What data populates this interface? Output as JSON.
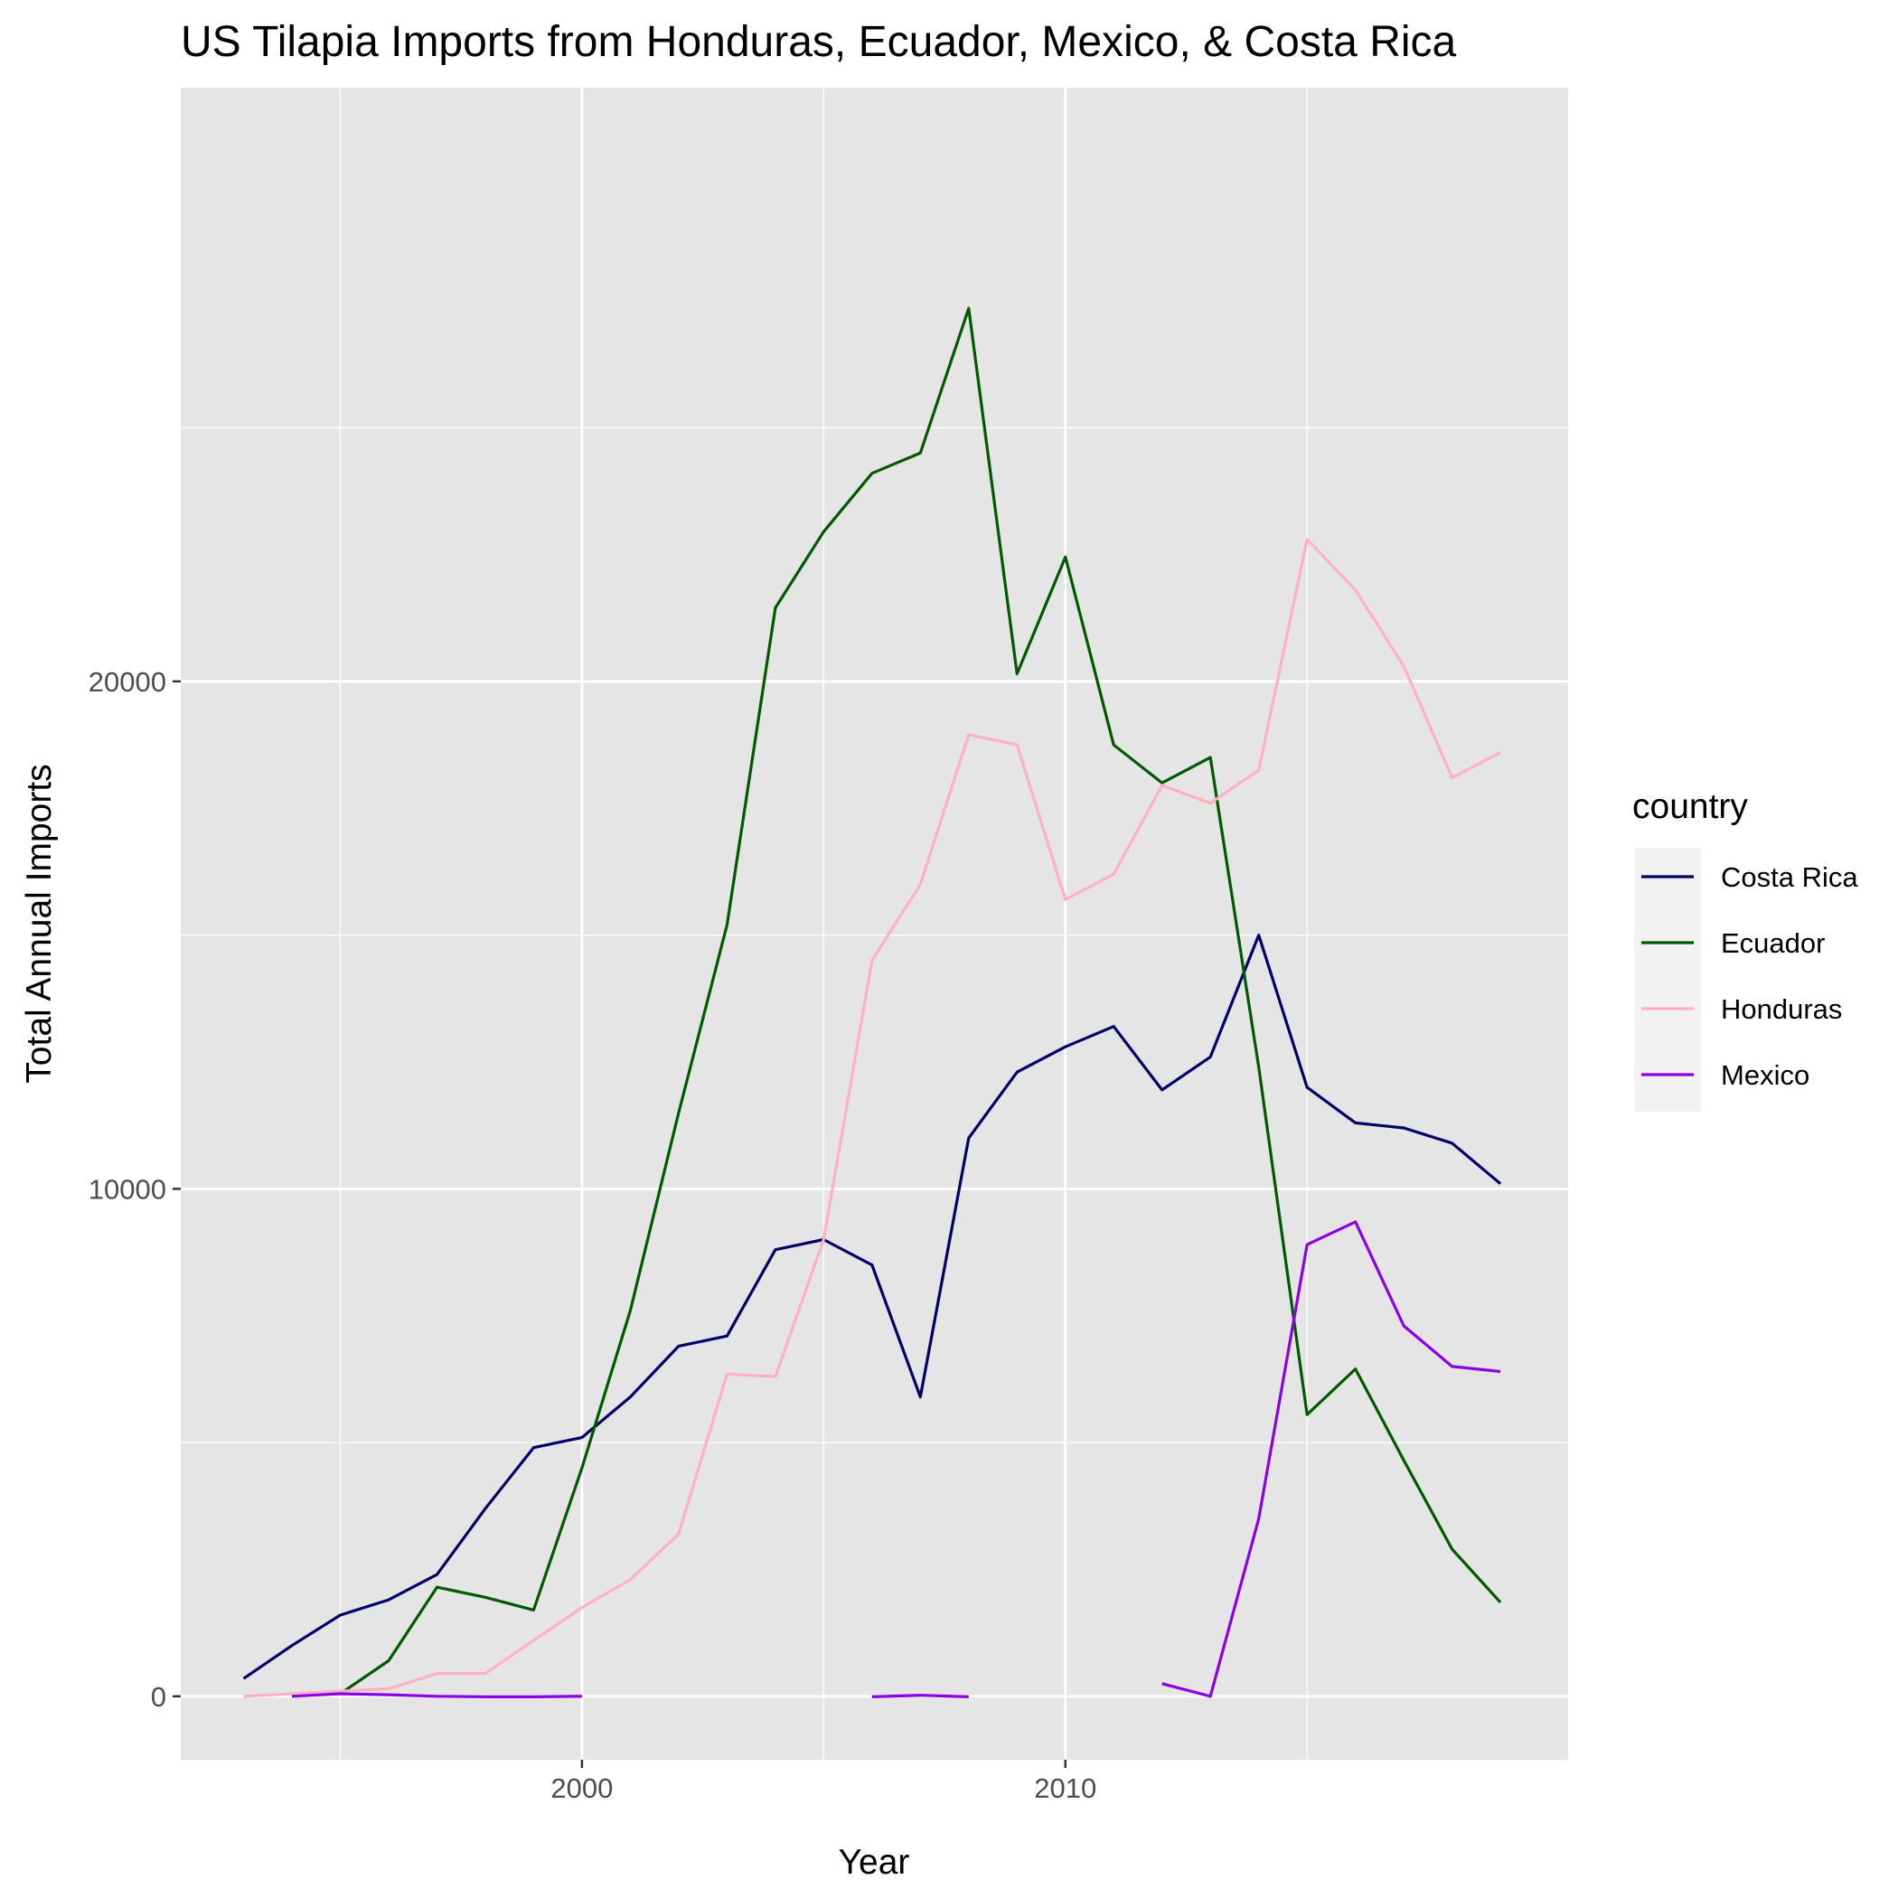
{
  "chart_data": {
    "type": "line",
    "title": "US Tilapia Imports from Honduras, Ecuador, Mexico, & Costa Rica",
    "xlabel": "Year",
    "ylabel": "Total Annual Imports",
    "xlim": [
      1991.7,
      2020.4
    ],
    "ylim": [
      -1250,
      31700
    ],
    "x_ticks": [
      2000,
      2010
    ],
    "y_ticks": [
      0,
      10000,
      20000
    ],
    "x_minor": [
      1995,
      2005,
      2015
    ],
    "y_minor": [
      5000,
      15000,
      25000
    ],
    "grid": true,
    "panel_color": "#e5e5e5",
    "grid_color": "#ffffff",
    "legend": {
      "title": "country",
      "position": "right"
    },
    "series": [
      {
        "name": "Costa Rica",
        "color": "#000066",
        "points": [
          [
            1993,
            350
          ],
          [
            1994,
            1000
          ],
          [
            1995,
            1600
          ],
          [
            1996,
            1900
          ],
          [
            1997,
            2400
          ],
          [
            1998,
            3700
          ],
          [
            1999,
            4900
          ],
          [
            2000,
            5100
          ],
          [
            2001,
            5900
          ],
          [
            2002,
            6900
          ],
          [
            2003,
            7100
          ],
          [
            2004,
            8800
          ],
          [
            2005,
            9000
          ],
          [
            2006,
            8500
          ],
          [
            2007,
            5900
          ],
          [
            2008,
            11000
          ],
          [
            2009,
            12300
          ],
          [
            2010,
            12800
          ],
          [
            2011,
            13200
          ],
          [
            2012,
            11950
          ],
          [
            2013,
            12600
          ],
          [
            2014,
            15000
          ],
          [
            2015,
            12000
          ],
          [
            2016,
            11300
          ],
          [
            2017,
            11200
          ],
          [
            2018,
            10900
          ],
          [
            2019,
            10100
          ]
        ]
      },
      {
        "name": "Ecuador",
        "color": "#005900",
        "points": [
          [
            1995,
            50
          ],
          [
            1996,
            700
          ],
          [
            1997,
            2150
          ],
          [
            1998,
            1950
          ],
          [
            1999,
            1700
          ],
          [
            2000,
            4500
          ],
          [
            2001,
            7600
          ],
          [
            2002,
            11500
          ],
          [
            2003,
            15200
          ],
          [
            2004,
            21450
          ],
          [
            2005,
            22950
          ],
          [
            2006,
            24100
          ],
          [
            2007,
            24500
          ],
          [
            2008,
            27350
          ],
          [
            2009,
            20150
          ],
          [
            2010,
            22450
          ],
          [
            2011,
            18750
          ],
          [
            2012,
            18000
          ],
          [
            2013,
            18500
          ],
          [
            2014,
            12400
          ],
          [
            2015,
            5550
          ],
          [
            2016,
            6450
          ],
          [
            2017,
            4650
          ],
          [
            2018,
            2900
          ],
          [
            2019,
            1850
          ]
        ]
      },
      {
        "name": "Honduras",
        "color": "#ffb0c1",
        "points": [
          [
            1993,
            0
          ],
          [
            1994,
            50
          ],
          [
            1995,
            100
          ],
          [
            1996,
            150
          ],
          [
            1997,
            450
          ],
          [
            1998,
            450
          ],
          [
            1999,
            1100
          ],
          [
            2000,
            1750
          ],
          [
            2001,
            2300
          ],
          [
            2002,
            3200
          ],
          [
            2003,
            6350
          ],
          [
            2004,
            6300
          ],
          [
            2005,
            9000
          ],
          [
            2006,
            14500
          ],
          [
            2007,
            16000
          ],
          [
            2008,
            18950
          ],
          [
            2009,
            18750
          ],
          [
            2010,
            15700
          ],
          [
            2011,
            16200
          ],
          [
            2012,
            17950
          ],
          [
            2013,
            17600
          ],
          [
            2014,
            18250
          ],
          [
            2015,
            22800
          ],
          [
            2016,
            21800
          ],
          [
            2017,
            20300
          ],
          [
            2018,
            18100
          ],
          [
            2019,
            18600
          ]
        ]
      },
      {
        "name": "Mexico",
        "color": "#8b00e5",
        "points": [
          [
            1994,
            0
          ],
          [
            1995,
            50
          ],
          [
            1996,
            30
          ],
          [
            1997,
            0
          ],
          [
            1998,
            -10
          ],
          [
            1999,
            -10
          ],
          [
            2000,
            0
          ],
          [
            2001,
            null
          ],
          [
            2002,
            null
          ],
          [
            2003,
            null
          ],
          [
            2004,
            null
          ],
          [
            2005,
            null
          ],
          [
            2006,
            -10
          ],
          [
            2007,
            20
          ],
          [
            2008,
            -10
          ],
          [
            2009,
            null
          ],
          [
            2010,
            null
          ],
          [
            2011,
            null
          ],
          [
            2012,
            250
          ],
          [
            2013,
            0
          ],
          [
            2014,
            3500
          ],
          [
            2015,
            8900
          ],
          [
            2016,
            9350
          ],
          [
            2017,
            7300
          ],
          [
            2018,
            6500
          ],
          [
            2019,
            6400
          ]
        ]
      }
    ]
  }
}
